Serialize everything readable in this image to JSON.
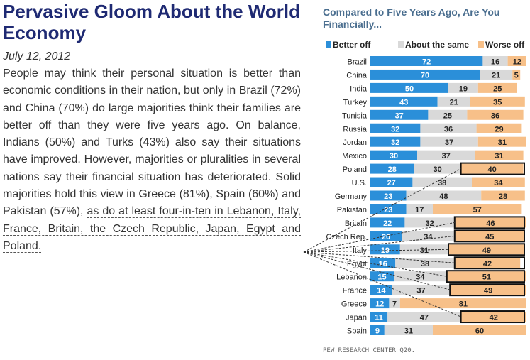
{
  "article": {
    "headline": "Pervasive Gloom About the World Economy",
    "date": "July 12, 2012",
    "body_main": "People may think their personal situation is better than economic conditions in their nation, but only in Brazil (72%) and China (70%) do large majorities think their families are better off than they were five years ago. On balance, Indians (50%) and Turks (43%) also say their situations have improved. However, majorities or pluralities in several nations say their financial situation has deteriorated. Solid majorities hold this view in Greece (81%), Spain (60%) and Pakistan (57%), ",
    "body_highlight": "as do at least four-in-ten in Lebanon, Italy, France, Britain, the Czech Republic, Japan, Egypt and Poland."
  },
  "chart_title": "Compared to Five Years Ago, Are You Financially...",
  "source": "PEW RESEARCH CENTER Q20.",
  "colors": {
    "better": "#2b8fd9",
    "same": "#d9d9d9",
    "worse": "#f7c089",
    "title": "#1f2a73",
    "chart_title": "#4a6e8f"
  },
  "chart_data": {
    "type": "bar",
    "stacked": true,
    "orientation": "horizontal",
    "title": "Compared to Five Years Ago, Are You Financially...",
    "legend_position": "top",
    "categories": [
      "Brazil",
      "China",
      "India",
      "Turkey",
      "Tunisia",
      "Russia",
      "Jordan",
      "Mexico",
      "Poland",
      "U.S.",
      "Germany",
      "Pakistan",
      "Britain",
      "Czech Rep.",
      "Italy",
      "Egypt",
      "Lebanon",
      "France",
      "Greece",
      "Japan",
      "Spain"
    ],
    "series": [
      {
        "name": "Better off",
        "values": [
          72,
          70,
          50,
          43,
          37,
          32,
          32,
          30,
          28,
          27,
          23,
          23,
          22,
          20,
          19,
          16,
          15,
          14,
          12,
          11,
          9
        ]
      },
      {
        "name": "About the same",
        "values": [
          16,
          21,
          19,
          21,
          25,
          36,
          37,
          37,
          30,
          38,
          48,
          17,
          32,
          34,
          31,
          38,
          34,
          37,
          7,
          47,
          31
        ]
      },
      {
        "name": "Worse off",
        "values": [
          12,
          5,
          25,
          35,
          36,
          29,
          31,
          31,
          40,
          34,
          28,
          57,
          46,
          45,
          49,
          42,
          51,
          49,
          81,
          42,
          60
        ]
      }
    ],
    "highlighted_countries": [
      "Poland",
      "Britain",
      "Czech Rep.",
      "Italy",
      "Egypt",
      "Lebanon",
      "France",
      "Japan"
    ]
  }
}
